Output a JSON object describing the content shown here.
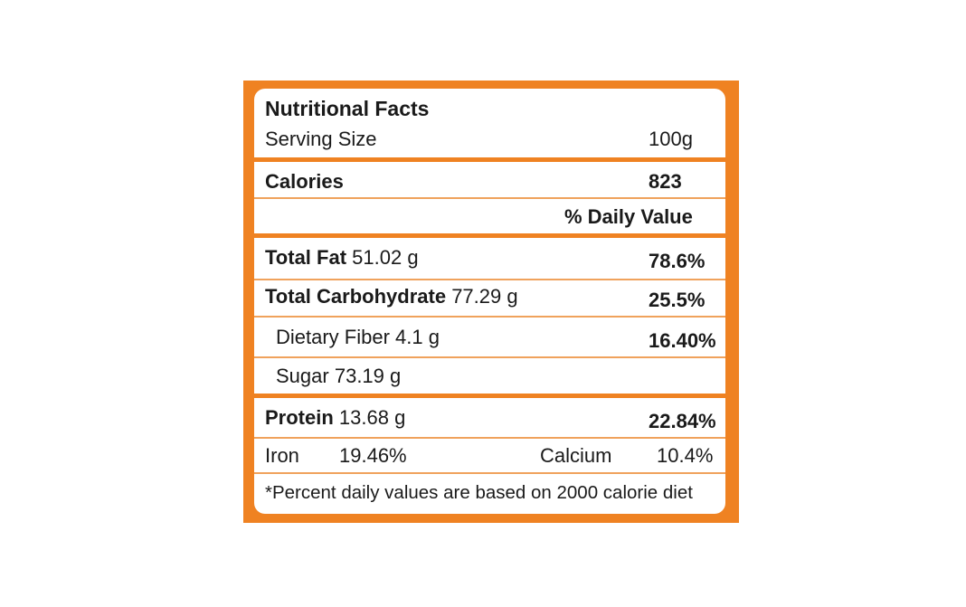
{
  "title": "Nutritional Facts",
  "serving": {
    "label": "Serving Size",
    "value": "100g"
  },
  "calories": {
    "label": "Calories",
    "value": "823"
  },
  "daily_value_header": "% Daily Value",
  "nutrients": [
    {
      "name": "Total Fat",
      "amount": "51.02 g",
      "dv": "78.6%"
    },
    {
      "name": "Total Carbohydrate",
      "amount": "77.29 g",
      "dv": "25.5%"
    },
    {
      "name": "Dietary Fiber",
      "amount": "4.1 g",
      "dv": "16.40%"
    },
    {
      "name": "Sugar",
      "amount": "73.19 g",
      "dv": ""
    },
    {
      "name": "Protein",
      "amount": "13.68 g",
      "dv": "22.84%"
    }
  ],
  "minerals": {
    "iron_label": "Iron",
    "iron_value": "19.46%",
    "calcium_label": "Calcium",
    "calcium_value": "10.4%"
  },
  "footnote": "*Percent daily values are based on 2000 calorie diet",
  "colors": {
    "frame": "#ef8222",
    "rule": "#f0a25c"
  }
}
